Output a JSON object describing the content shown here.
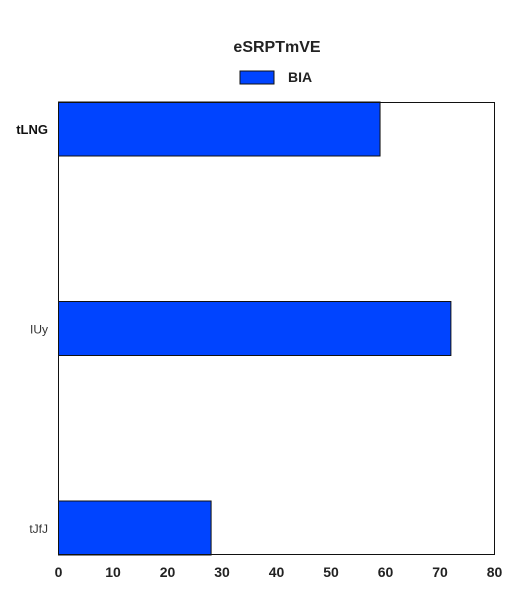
{
  "chart_data": {
    "type": "bar",
    "orientation": "horizontal",
    "title": "eSRPTmVE",
    "xlabel": "",
    "ylabel": "",
    "categories": [
      "tLNG",
      "IUy",
      "tJfJ"
    ],
    "series": [
      {
        "name": "BIA",
        "values": [
          59,
          72,
          28
        ],
        "color": "#0044ff"
      }
    ],
    "xlim": [
      0,
      80
    ],
    "xticks": [
      "0",
      "10",
      "20",
      "30",
      "40",
      "50",
      "60",
      "70",
      "80"
    ],
    "grid": false,
    "legend": "top-center"
  }
}
